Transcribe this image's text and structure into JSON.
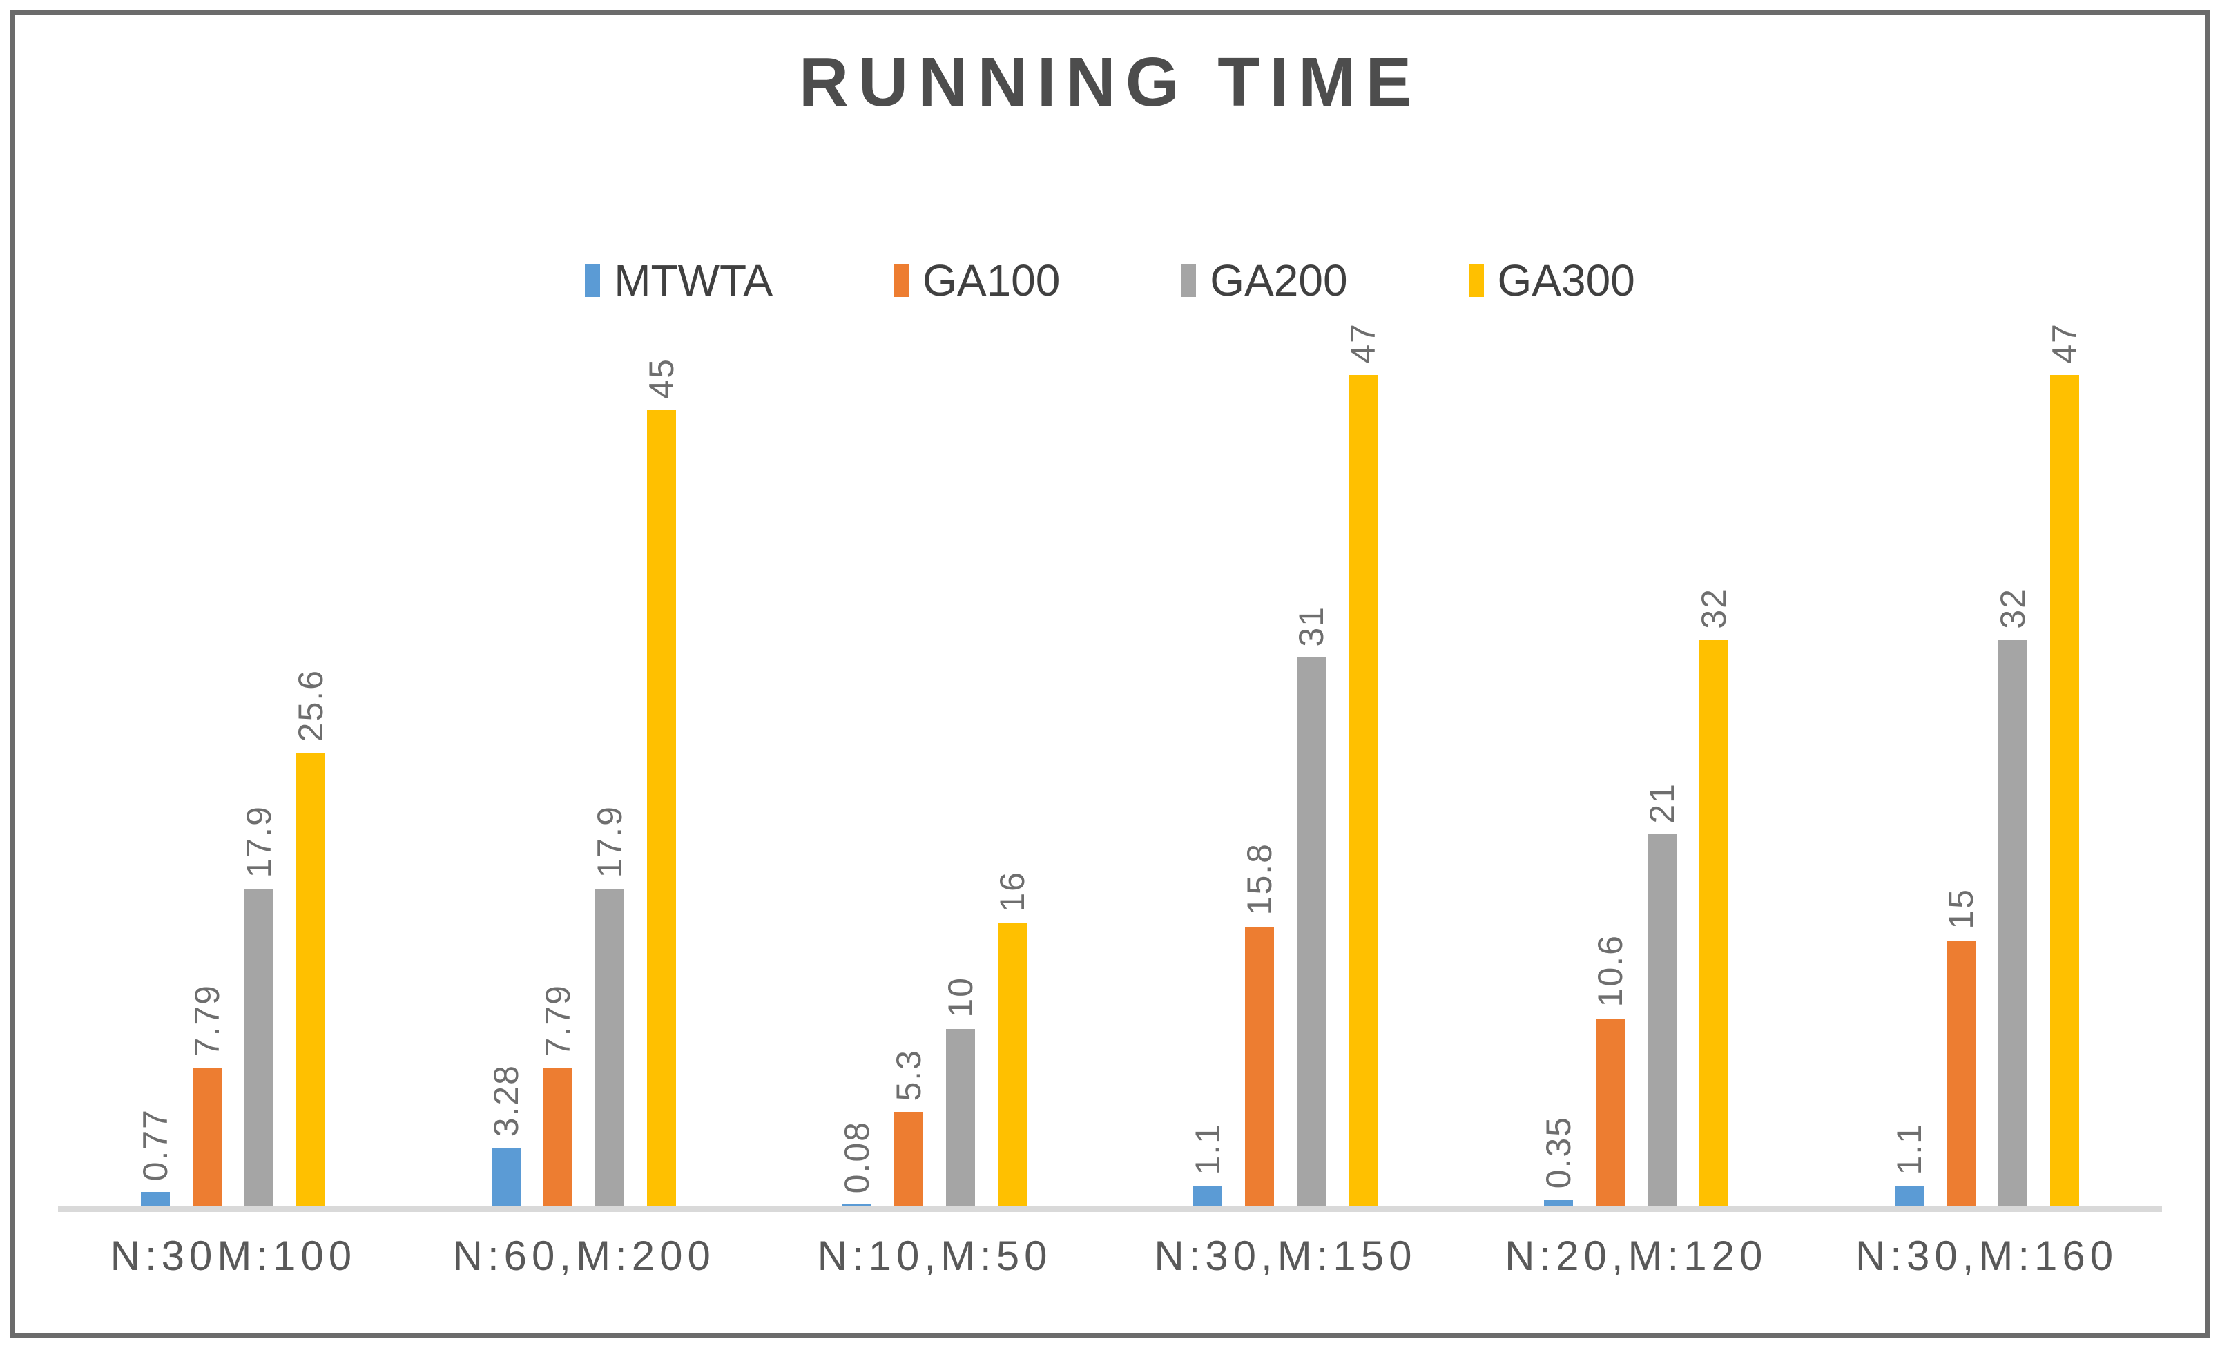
{
  "chart_data": {
    "type": "bar",
    "title": "RUNNING TIME",
    "categories": [
      "N:30M:100",
      "N:60,M:200",
      "N:10,M:50",
      "N:30,M:150",
      "N:20,M:120",
      "N:30,M:160"
    ],
    "series": [
      {
        "name": "MTWTA",
        "color": "#5B9BD5",
        "values": [
          0.77,
          3.28,
          0.08,
          1.1,
          0.35,
          1.1
        ]
      },
      {
        "name": "GA100",
        "color": "#ED7D31",
        "values": [
          7.79,
          7.79,
          5.3,
          15.8,
          10.6,
          15
        ]
      },
      {
        "name": "GA200",
        "color": "#A5A5A5",
        "values": [
          17.9,
          17.9,
          10,
          31,
          21,
          32
        ]
      },
      {
        "name": "GA300",
        "color": "#FFC000",
        "values": [
          25.6,
          45,
          16,
          47,
          32,
          47
        ]
      }
    ],
    "ylim": [
      0,
      47.5
    ],
    "grid": false,
    "legend_position": "top",
    "value_labels_rotated": true
  },
  "frame": {
    "border_color": "#6b6b6b",
    "axis_color": "#d9d9d9"
  }
}
